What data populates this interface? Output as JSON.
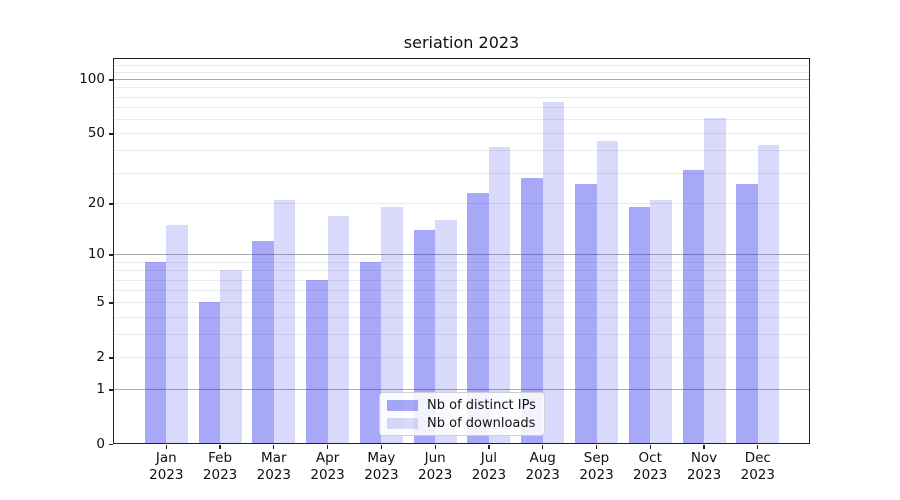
{
  "chart_data": {
    "type": "bar",
    "title": "seriation 2023",
    "x_months": [
      "Jan",
      "Feb",
      "Mar",
      "Apr",
      "May",
      "Jun",
      "Jul",
      "Aug",
      "Sep",
      "Oct",
      "Nov",
      "Dec"
    ],
    "x_year": "2023",
    "series": [
      {
        "name": "Nb of distinct IPs",
        "color": "#2222EE64",
        "values": [
          9,
          5,
          12,
          7,
          9,
          14,
          23,
          28,
          26,
          19,
          31,
          26
        ]
      },
      {
        "name": "Nb of downloads",
        "color": "#2222EE2C",
        "values": [
          15,
          8,
          21,
          17,
          19,
          16,
          42,
          75,
          45,
          21,
          61,
          43
        ]
      }
    ],
    "yscale": "log1p",
    "ylim": [
      0,
      131
    ],
    "yticks": [
      0,
      1,
      2,
      5,
      10,
      20,
      50,
      100
    ],
    "gridlines": {
      "major": [
        1,
        10,
        100
      ],
      "minor": [
        2,
        3,
        4,
        5,
        6,
        7,
        8,
        9,
        20,
        30,
        40,
        50,
        60,
        70,
        80,
        90,
        110,
        120
      ],
      "major_color": "#ababab",
      "minor_color": "#ebebeb"
    },
    "grid": true,
    "legend_position": "lower center",
    "axis_color": "#222222",
    "text_color": "#111111"
  }
}
